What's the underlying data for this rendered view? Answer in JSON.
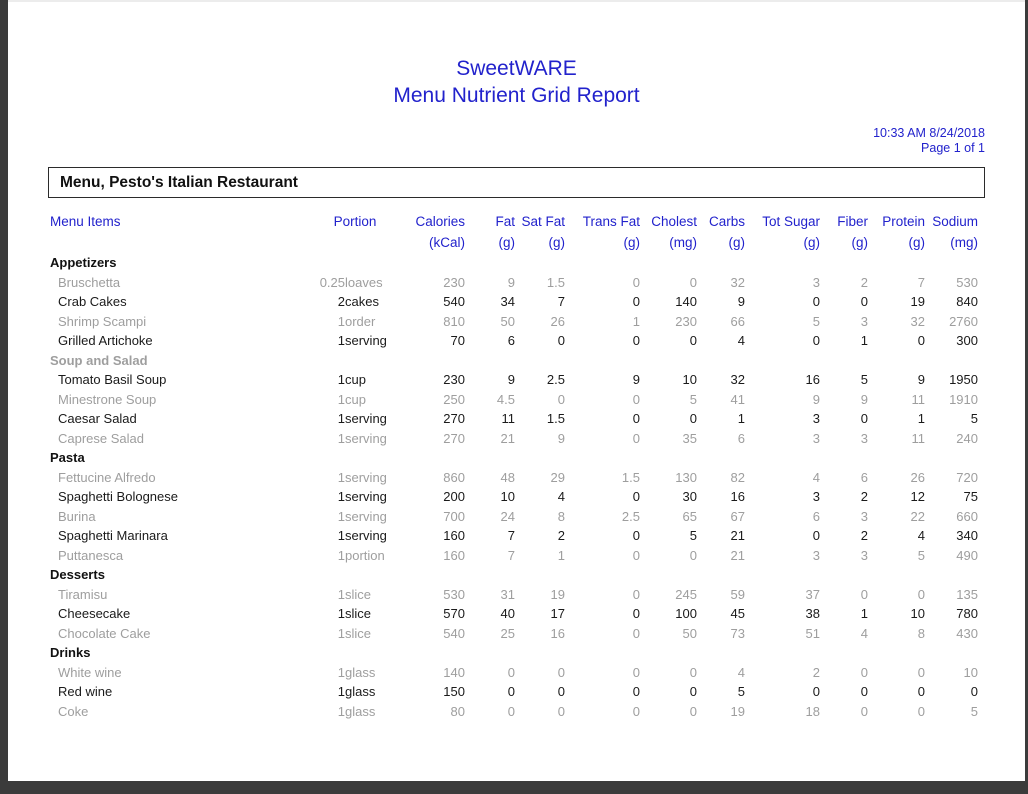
{
  "colors": {
    "accent": "#2222cc",
    "muted": "#9e9e9e",
    "frame": "#3b3b3b"
  },
  "report": {
    "title_line1": "SweetWARE",
    "title_line2": "Menu Nutrient Grid Report",
    "timestamp": "10:33 AM 8/24/2018",
    "page_info": "Page 1 of 1",
    "menu_title": "Menu, Pesto's Italian Restaurant"
  },
  "table": {
    "headers": [
      {
        "label": "Menu Items",
        "unit": ""
      },
      {
        "label": "Portion",
        "unit": ""
      },
      {
        "label": "Calories",
        "unit": "(kCal)"
      },
      {
        "label": "Fat",
        "unit": "(g)"
      },
      {
        "label": "Sat Fat",
        "unit": "(g)"
      },
      {
        "label": "Trans Fat",
        "unit": "(g)"
      },
      {
        "label": "Cholest",
        "unit": "(mg)"
      },
      {
        "label": "Carbs",
        "unit": "(g)"
      },
      {
        "label": "Tot Sugar",
        "unit": "(g)"
      },
      {
        "label": "Fiber",
        "unit": "(g)"
      },
      {
        "label": "Protein",
        "unit": "(g)"
      },
      {
        "label": "Sodium",
        "unit": "(mg)"
      }
    ],
    "sections": [
      {
        "name": "Appetizers",
        "muted": false,
        "rows": [
          {
            "name": "Bruschetta",
            "muted": true,
            "values": [
              "0.25",
              "loaves",
              "230",
              "9",
              "1.5",
              "0",
              "0",
              "32",
              "3",
              "2",
              "7",
              "530"
            ]
          },
          {
            "name": "Crab Cakes",
            "muted": false,
            "values": [
              "2",
              "cakes",
              "540",
              "34",
              "7",
              "0",
              "140",
              "9",
              "0",
              "0",
              "19",
              "840"
            ]
          },
          {
            "name": "Shrimp Scampi",
            "muted": true,
            "values": [
              "1",
              "order",
              "810",
              "50",
              "26",
              "1",
              "230",
              "66",
              "5",
              "3",
              "32",
              "2760"
            ]
          },
          {
            "name": "Grilled Artichoke",
            "muted": false,
            "values": [
              "1",
              "serving",
              "70",
              "6",
              "0",
              "0",
              "0",
              "4",
              "0",
              "1",
              "0",
              "300"
            ]
          }
        ]
      },
      {
        "name": "Soup and Salad",
        "muted": true,
        "rows": [
          {
            "name": "Tomato Basil Soup",
            "muted": false,
            "values": [
              "1",
              "cup",
              "230",
              "9",
              "2.5",
              "9",
              "10",
              "32",
              "16",
              "5",
              "9",
              "1950"
            ]
          },
          {
            "name": "Minestrone Soup",
            "muted": true,
            "values": [
              "1",
              "cup",
              "250",
              "4.5",
              "0",
              "0",
              "5",
              "41",
              "9",
              "9",
              "11",
              "1910"
            ]
          },
          {
            "name": "Caesar Salad",
            "muted": false,
            "values": [
              "1",
              "serving",
              "270",
              "11",
              "1.5",
              "0",
              "0",
              "1",
              "3",
              "0",
              "1",
              "5"
            ]
          },
          {
            "name": "Caprese Salad",
            "muted": true,
            "values": [
              "1",
              "serving",
              "270",
              "21",
              "9",
              "0",
              "35",
              "6",
              "3",
              "3",
              "11",
              "240"
            ]
          }
        ]
      },
      {
        "name": "Pasta",
        "muted": false,
        "rows": [
          {
            "name": "Fettucine Alfredo",
            "muted": true,
            "values": [
              "1",
              "serving",
              "860",
              "48",
              "29",
              "1.5",
              "130",
              "82",
              "4",
              "6",
              "26",
              "720"
            ]
          },
          {
            "name": "Spaghetti Bolognese",
            "muted": false,
            "values": [
              "1",
              "serving",
              "200",
              "10",
              "4",
              "0",
              "30",
              "16",
              "3",
              "2",
              "12",
              "75"
            ]
          },
          {
            "name": "Burina",
            "muted": true,
            "values": [
              "1",
              "serving",
              "700",
              "24",
              "8",
              "2.5",
              "65",
              "67",
              "6",
              "3",
              "22",
              "660"
            ]
          },
          {
            "name": "Spaghetti Marinara",
            "muted": false,
            "values": [
              "1",
              "serving",
              "160",
              "7",
              "2",
              "0",
              "5",
              "21",
              "0",
              "2",
              "4",
              "340"
            ]
          },
          {
            "name": "Puttanesca",
            "muted": true,
            "values": [
              "1",
              "portion",
              "160",
              "7",
              "1",
              "0",
              "0",
              "21",
              "3",
              "3",
              "5",
              "490"
            ]
          }
        ]
      },
      {
        "name": "Desserts",
        "muted": false,
        "rows": [
          {
            "name": "Tiramisu",
            "muted": true,
            "values": [
              "1",
              "slice",
              "530",
              "31",
              "19",
              "0",
              "245",
              "59",
              "37",
              "0",
              "0",
              "135"
            ]
          },
          {
            "name": "Cheesecake",
            "muted": false,
            "values": [
              "1",
              "slice",
              "570",
              "40",
              "17",
              "0",
              "100",
              "45",
              "38",
              "1",
              "10",
              "780"
            ]
          },
          {
            "name": "Chocolate Cake",
            "muted": true,
            "values": [
              "1",
              "slice",
              "540",
              "25",
              "16",
              "0",
              "50",
              "73",
              "51",
              "4",
              "8",
              "430"
            ]
          }
        ]
      },
      {
        "name": "Drinks",
        "muted": false,
        "rows": [
          {
            "name": "White wine",
            "muted": true,
            "values": [
              "1",
              "glass",
              "140",
              "0",
              "0",
              "0",
              "0",
              "4",
              "2",
              "0",
              "0",
              "10"
            ]
          },
          {
            "name": "Red wine",
            "muted": false,
            "values": [
              "1",
              "glass",
              "150",
              "0",
              "0",
              "0",
              "0",
              "5",
              "0",
              "0",
              "0",
              "0"
            ]
          },
          {
            "name": "Coke",
            "muted": true,
            "values": [
              "1",
              "glass",
              "80",
              "0",
              "0",
              "0",
              "0",
              "19",
              "18",
              "0",
              "0",
              "5"
            ]
          }
        ]
      }
    ]
  }
}
